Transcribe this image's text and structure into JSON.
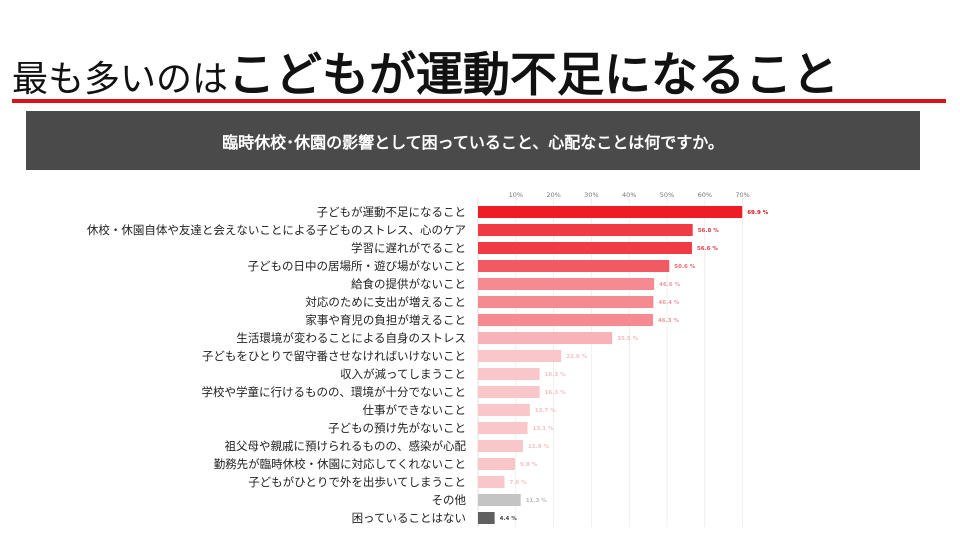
{
  "title": {
    "light": "最も多いのは",
    "bold": "こどもが運動不足になること"
  },
  "question": "臨時休校･休園の影響として困っていること、心配なことは何ですか。",
  "colors": {
    "accent_rule": "#d7141a",
    "banner_bg": "#4a4a4a"
  },
  "chart_data": {
    "type": "bar",
    "orientation": "horizontal",
    "title": "",
    "xlabel": "",
    "ylabel": "",
    "xlim": [
      0,
      70
    ],
    "x_ticks": [
      "10%",
      "20%",
      "30%",
      "40%",
      "50%",
      "60%",
      "70%"
    ],
    "grid": true,
    "categories": [
      "子どもが運動不足になること",
      "休校・休園自体や友達と会えないことによる子どものストレス、心のケア",
      "学習に遅れがでること",
      "子どもの日中の居場所・遊び場がないこと",
      "給食の提供がないこと",
      "対応のために支出が増えること",
      "家事や育児の負担が増えること",
      "生活環境が変わることによる自身のストレス",
      "子どもをひとりで留守番させなければいけないこと",
      "収入が減ってしまうこと",
      "学校や学童に行けるものの、環境が十分でないこと",
      "仕事ができないこと",
      "子どもの預け先がないこと",
      "祖父母や親戚に預けられるものの、感染が心配",
      "勤務先が臨時休校・休園に対応してくれないこと",
      "子どもがひとりで外を出歩いてしまうこと",
      "その他",
      "困っていることはない"
    ],
    "values": [
      69.9,
      56.8,
      56.6,
      50.6,
      46.6,
      46.4,
      46.3,
      35.5,
      22.0,
      16.3,
      16.3,
      13.7,
      13.1,
      11.9,
      9.8,
      7.0,
      11.3,
      4.4
    ],
    "value_labels": [
      "69.9 %",
      "56.8 %",
      "56.6 %",
      "50.6 %",
      "46.6 %",
      "46.4 %",
      "46.3 %",
      "35.5 %",
      "22.0 %",
      "16.3 %",
      "16.3 %",
      "13.7 %",
      "13.1 %",
      "11.9 %",
      "9.8 %",
      "7.0 %",
      "11.3 %",
      "4.4 %"
    ],
    "bar_colors": [
      "#ee1c25",
      "#f03a44",
      "#f03a44",
      "#f25a63",
      "#f58a90",
      "#f58a90",
      "#f58a90",
      "#f7b3b7",
      "#f9c6c9",
      "#f9c6c9",
      "#f9c6c9",
      "#f9c6c9",
      "#f9c6c9",
      "#f9c6c9",
      "#f9c6c9",
      "#f9c6c9",
      "#c4c4c4",
      "#606060"
    ],
    "label_colors": [
      "#d7141a",
      "#e0404a",
      "#e0404a",
      "#e86a72",
      "#ee9aa0",
      "#ee9aa0",
      "#ee9aa0",
      "#f2b9bd",
      "#f2c2c5",
      "#f2c2c5",
      "#f2c2c5",
      "#f2c2c5",
      "#f2c2c5",
      "#f2c2c5",
      "#f2c2c5",
      "#f2c2c5",
      "#bbbbbb",
      "#444444"
    ]
  }
}
